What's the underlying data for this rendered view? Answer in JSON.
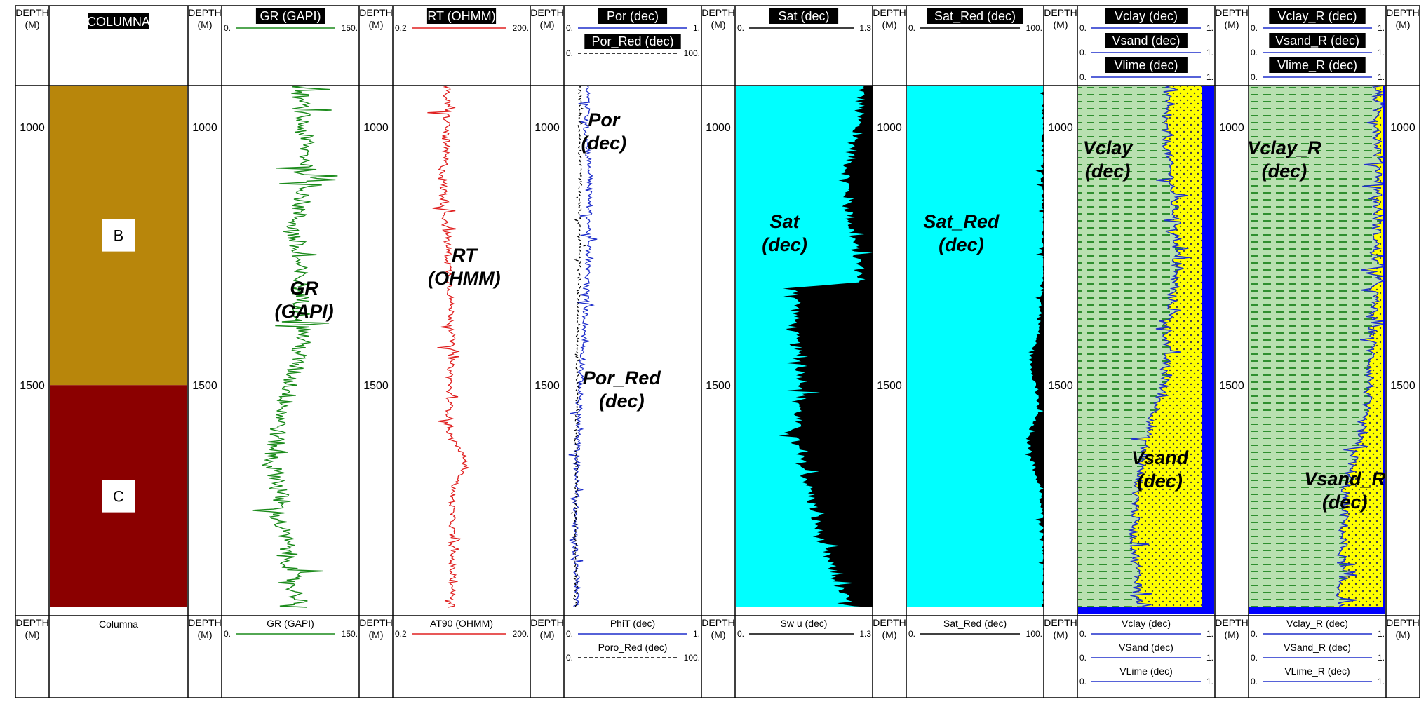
{
  "columns": {
    "depth_header": "DEPTH",
    "depth_unit": "(M)",
    "columna": {
      "title": "COLUMNA",
      "footer": "Columna"
    },
    "zones": [
      {
        "label": "B",
        "top": 920,
        "bottom": 1500,
        "color": "#B8860B"
      },
      {
        "label": "C",
        "top": 1500,
        "bottom": 1930,
        "color": "#8B0000"
      }
    ]
  },
  "depth_axis": {
    "min": 920,
    "max": 1930,
    "ticks": [
      "1000",
      "1500"
    ]
  },
  "tracks": [
    {
      "id": "gr",
      "header": [
        {
          "name": "GR (GAPI)",
          "min": "0.",
          "max": "150.",
          "color": "#1A8A1A",
          "dash": false
        }
      ],
      "footer": [
        {
          "name": "GR (GAPI)",
          "min": "0.",
          "max": "150.",
          "color": "#1A8A1A",
          "dash": false
        }
      ],
      "overlay": [
        "GR",
        "(GAPI)"
      ]
    },
    {
      "id": "rt",
      "header": [
        {
          "name": "RT (OHMM)",
          "min": "0.2",
          "max": "200.",
          "color": "#E02020",
          "dash": false
        }
      ],
      "footer": [
        {
          "name": "AT90 (OHMM)",
          "min": "0.2",
          "max": "200.",
          "color": "#E02020",
          "dash": false
        }
      ],
      "overlay": [
        "RT",
        "(OHMM)"
      ]
    },
    {
      "id": "por",
      "header": [
        {
          "name": "Por (dec)",
          "min": "0.",
          "max": "1.",
          "color": "#1F2FCC",
          "dash": false
        },
        {
          "name": "Por_Red (dec)",
          "min": "0.",
          "max": "100.",
          "color": "#000000",
          "dash": true
        }
      ],
      "footer": [
        {
          "name": "PhiT (dec)",
          "min": "0.",
          "max": "1.",
          "color": "#1F2FCC",
          "dash": false
        },
        {
          "name": "Poro_Red (dec)",
          "min": "0.",
          "max": "100.",
          "color": "#000000",
          "dash": true
        }
      ],
      "overlay": [
        "Por",
        "(dec)"
      ],
      "overlay2": [
        "Por_Red",
        "(dec)"
      ]
    },
    {
      "id": "sat",
      "header": [
        {
          "name": "Sat (dec)",
          "min": "0.",
          "max": "1.3",
          "color": "#000000",
          "dash": false
        }
      ],
      "footer": [
        {
          "name": "Sw u (dec)",
          "min": "0.",
          "max": "1.3",
          "color": "#000000",
          "dash": false
        }
      ],
      "overlay": [
        "Sat",
        "(dec)"
      ]
    },
    {
      "id": "satred",
      "header": [
        {
          "name": "Sat_Red (dec)",
          "min": "0.",
          "max": "100.",
          "color": "#000000",
          "dash": false
        }
      ],
      "footer": [
        {
          "name": "Sat_Red (dec)",
          "min": "0.",
          "max": "100.",
          "color": "#000000",
          "dash": false
        }
      ],
      "overlay": [
        "Sat_Red",
        "(dec)"
      ]
    },
    {
      "id": "vclay",
      "header": [
        {
          "name": "Vclay (dec)",
          "min": "0.",
          "max": "1.",
          "color": "#1F2FCC",
          "dash": false
        },
        {
          "name": "Vsand (dec)",
          "min": "0.",
          "max": "1.",
          "color": "#1F2FCC",
          "dash": false
        },
        {
          "name": "Vlime (dec)",
          "min": "0.",
          "max": "1.",
          "color": "#1F2FCC",
          "dash": false
        }
      ],
      "footer": [
        {
          "name": "Vclay (dec)",
          "min": "0.",
          "max": "1.",
          "color": "#1F2FCC",
          "dash": false
        },
        {
          "name": "VSand (dec)",
          "min": "0.",
          "max": "1.",
          "color": "#1F2FCC",
          "dash": false
        },
        {
          "name": "VLime (dec)",
          "min": "0.",
          "max": "1.",
          "color": "#1F2FCC",
          "dash": false
        }
      ],
      "overlay": [
        "Vclay",
        "(dec)"
      ],
      "overlay2": [
        "Vsand",
        "(dec)"
      ]
    },
    {
      "id": "vclayr",
      "header": [
        {
          "name": "Vclay_R (dec)",
          "min": "0.",
          "max": "1.",
          "color": "#1F2FCC",
          "dash": false
        },
        {
          "name": "Vsand_R (dec)",
          "min": "0.",
          "max": "1.",
          "color": "#1F2FCC",
          "dash": false
        },
        {
          "name": "Vlime_R (dec)",
          "min": "0.",
          "max": "1.",
          "color": "#1F2FCC",
          "dash": false
        }
      ],
      "footer": [
        {
          "name": "Vclay_R (dec)",
          "min": "0.",
          "max": "1.",
          "color": "#1F2FCC",
          "dash": false
        },
        {
          "name": "VSand_R (dec)",
          "min": "0.",
          "max": "1.",
          "color": "#1F2FCC",
          "dash": false
        },
        {
          "name": "VLime_R (dec)",
          "min": "0.",
          "max": "1.",
          "color": "#1F2FCC",
          "dash": false
        }
      ],
      "overlay": [
        "Vclay_R",
        "(dec)"
      ],
      "overlay2": [
        "Vsand_R",
        "(dec)"
      ]
    }
  ],
  "colors": {
    "sat_fill": "#00FFFF",
    "sat_black": "#000000",
    "clay_fill": "#B8E0B0",
    "clay_dash": "#2F8F2F",
    "sand_fill": "#FFFF00",
    "lime_fill": "#0000FF"
  },
  "chart_data": {
    "type": "line",
    "y_axis": {
      "label": "DEPTH (M)",
      "range": [
        920,
        1930
      ],
      "reversed": true,
      "ticks": [
        1000,
        1500
      ]
    },
    "series": [
      {
        "name": "GR (GAPI)",
        "range": [
          0,
          150
        ],
        "depth": [
          920,
          1000,
          1100,
          1200,
          1300,
          1400,
          1500,
          1600,
          1650,
          1700,
          1750,
          1800,
          1900,
          1930
        ],
        "values": [
          85,
          88,
          95,
          78,
          85,
          90,
          75,
          60,
          55,
          65,
          60,
          70,
          80,
          90
        ]
      },
      {
        "name": "RT (OHMM)",
        "range": [
          0.2,
          200
        ],
        "scale": "log",
        "depth": [
          920,
          1000,
          1100,
          1200,
          1300,
          1400,
          1500,
          1600,
          1650,
          1700,
          1800,
          1900,
          1930
        ],
        "values": [
          3,
          3,
          2.5,
          3,
          3.5,
          4,
          3.5,
          3.5,
          8,
          4,
          4,
          4,
          4
        ]
      },
      {
        "name": "Por (dec)",
        "range": [
          0,
          1
        ],
        "depth": [
          920,
          1000,
          1100,
          1200,
          1300,
          1400,
          1500,
          1600,
          1700,
          1800,
          1900,
          1930
        ],
        "values": [
          0.18,
          0.16,
          0.19,
          0.18,
          0.17,
          0.15,
          0.12,
          0.1,
          0.09,
          0.08,
          0.1,
          0.09
        ]
      },
      {
        "name": "Por_Red (dec)",
        "range": [
          0,
          100
        ],
        "depth": [
          920,
          1000,
          1100,
          1200,
          1300,
          1400,
          1500,
          1600,
          1700,
          1800,
          1900,
          1930
        ],
        "values": [
          12,
          11,
          12,
          11,
          11,
          10,
          10,
          9,
          9,
          8,
          9,
          9
        ]
      },
      {
        "name": "Sat (dec)",
        "range": [
          0,
          1.3
        ],
        "depth": [
          920,
          1000,
          1100,
          1200,
          1300,
          1310,
          1400,
          1500,
          1600,
          1700,
          1800,
          1900,
          1930
        ],
        "values": [
          1.2,
          1.15,
          1.05,
          1.1,
          1.2,
          0.6,
          0.55,
          0.65,
          0.55,
          0.7,
          0.8,
          1.0,
          1.1
        ]
      },
      {
        "name": "Sat_Red (dec)",
        "range": [
          0,
          100
        ],
        "depth": [
          920,
          1000,
          1100,
          1200,
          1300,
          1400,
          1450,
          1500,
          1550,
          1600,
          1650,
          1700,
          1800,
          1930
        ],
        "values": [
          100,
          100,
          99,
          100,
          99,
          96,
          90,
          94,
          96,
          88,
          92,
          97,
          100,
          100
        ]
      },
      {
        "name": "Vclay (dec)",
        "range": [
          0,
          1
        ],
        "depth": [
          920,
          1000,
          1100,
          1200,
          1300,
          1400,
          1500,
          1600,
          1700,
          1800,
          1900,
          1930
        ],
        "values": [
          0.72,
          0.7,
          0.75,
          0.8,
          0.78,
          0.72,
          0.7,
          0.55,
          0.48,
          0.45,
          0.5,
          0.5
        ]
      },
      {
        "name": "Vclay_R (dec)",
        "range": [
          0,
          1
        ],
        "depth": [
          920,
          1000,
          1100,
          1200,
          1300,
          1400,
          1500,
          1600,
          1700,
          1800,
          1900,
          1930
        ],
        "values": [
          0.95,
          0.96,
          0.97,
          0.95,
          0.94,
          0.92,
          0.9,
          0.82,
          0.72,
          0.7,
          0.68,
          0.7
        ]
      }
    ]
  }
}
